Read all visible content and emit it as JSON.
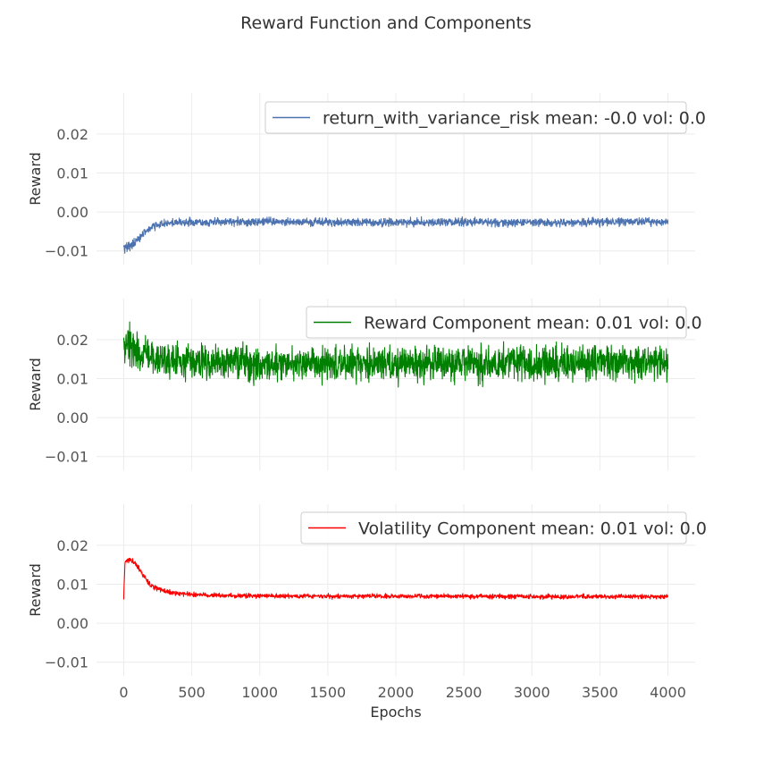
{
  "chart_data": {
    "type": "line",
    "title": "Reward Function and Components",
    "xlabel": "Epochs",
    "xlim": [
      -200,
      4200
    ],
    "xticks": [
      0,
      500,
      1000,
      1500,
      2000,
      2500,
      3000,
      3500,
      4000
    ],
    "xtick_labels": [
      "0",
      "500",
      "1000",
      "1500",
      "2000",
      "2500",
      "3000",
      "3500",
      "4000"
    ],
    "grid": true,
    "panels": [
      {
        "ylabel": "Reward",
        "ylim": [
          -0.0135,
          0.0305
        ],
        "yticks": [
          -0.01,
          0.0,
          0.01,
          0.02
        ],
        "ytick_labels": [
          "−0.01",
          "0.00",
          "0.01",
          "0.02"
        ],
        "legend_position": "top-right",
        "series": [
          {
            "name": "return_with_variance_risk mean: -0.0 vol: 0.0",
            "color": "#4c72b0",
            "x": [
              0,
              25,
              50,
              75,
              100,
              150,
              200,
              300,
              400,
              600,
              800,
              1000,
              1500,
              2000,
              2500,
              3000,
              3500,
              4000
            ],
            "y": [
              -0.009,
              -0.0092,
              -0.0085,
              -0.0078,
              -0.007,
              -0.0055,
              -0.0038,
              -0.0029,
              -0.0027,
              -0.0026,
              -0.0026,
              -0.0025,
              -0.0026,
              -0.0027,
              -0.0026,
              -0.0027,
              -0.0026,
              -0.0025
            ],
            "noise": [
              0.0012,
              0.0012,
              0.0012,
              0.0012,
              0.001,
              0.001,
              0.0009,
              0.0009,
              0.0009,
              0.0009,
              0.0009,
              0.0009,
              0.0009,
              0.0009,
              0.0009,
              0.0009,
              0.0009,
              0.0009
            ]
          }
        ]
      },
      {
        "ylabel": "Reward",
        "ylim": [
          -0.0135,
          0.0305
        ],
        "yticks": [
          -0.01,
          0.0,
          0.01,
          0.02
        ],
        "ytick_labels": [
          "−0.01",
          "0.00",
          "0.01",
          "0.02"
        ],
        "legend_position": "top-right",
        "series": [
          {
            "name": "Reward Component mean: 0.01 vol: 0.0",
            "color": "#008000",
            "x": [
              0,
              25,
              50,
              100,
              200,
              400,
              600,
              800,
              1000,
              1500,
              2000,
              2500,
              3000,
              3500,
              4000
            ],
            "y": [
              0.0175,
              0.019,
              0.0185,
              0.017,
              0.0155,
              0.0145,
              0.014,
              0.014,
              0.0138,
              0.0138,
              0.0138,
              0.0138,
              0.0138,
              0.0138,
              0.014
            ],
            "noise": [
              0.0045,
              0.0045,
              0.0045,
              0.0042,
              0.004,
              0.0038,
              0.0038,
              0.0038,
              0.0038,
              0.0038,
              0.0038,
              0.0038,
              0.0038,
              0.0038,
              0.0038
            ]
          }
        ]
      },
      {
        "ylabel": "Reward",
        "ylim": [
          -0.0135,
          0.0305
        ],
        "yticks": [
          -0.01,
          0.0,
          0.01,
          0.02
        ],
        "ytick_labels": [
          "−0.01",
          "0.00",
          "0.01",
          "0.02"
        ],
        "legend_position": "top-right",
        "series": [
          {
            "name": "Volatility Component mean: 0.01 vol: 0.0",
            "color": "#ff0000",
            "x": [
              0,
              10,
              25,
              50,
              75,
              100,
              150,
              200,
              300,
              400,
              600,
              800,
              1000,
              1500,
              2000,
              2500,
              3000,
              3500,
              4000
            ],
            "y": [
              0.0065,
              0.0158,
              0.0162,
              0.016,
              0.0155,
              0.0145,
              0.012,
              0.0095,
              0.0082,
              0.0076,
              0.0072,
              0.007,
              0.007,
              0.0069,
              0.0069,
              0.0069,
              0.0068,
              0.0068,
              0.0068
            ],
            "noise": [
              0.0004,
              0.0006,
              0.0006,
              0.0006,
              0.0006,
              0.0006,
              0.0006,
              0.0006,
              0.0005,
              0.0005,
              0.0005,
              0.0005,
              0.0005,
              0.0005,
              0.0005,
              0.0005,
              0.0005,
              0.0005,
              0.0005
            ]
          }
        ]
      }
    ]
  }
}
